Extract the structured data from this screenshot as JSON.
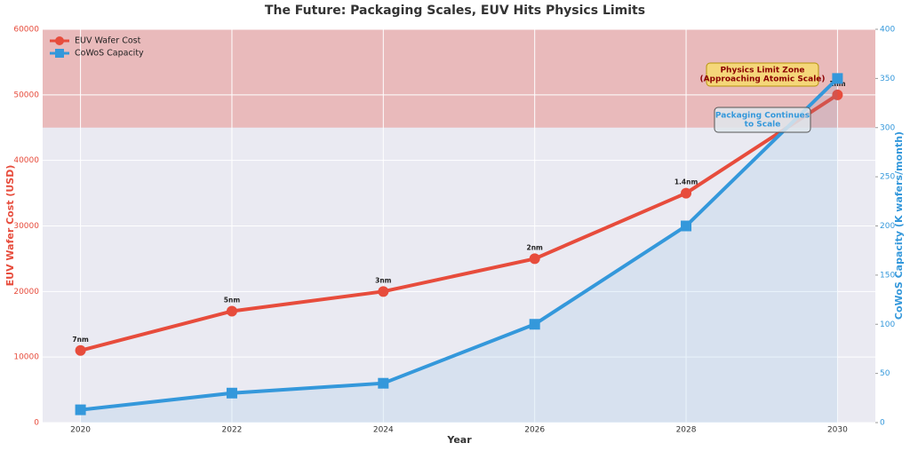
{
  "chart_data": {
    "type": "line",
    "title": "The Future: Packaging Scales, EUV Hits Physics Limits",
    "x_label": "Year",
    "y_label": "EUV Wafer Cost (USD)",
    "y2_label": "CoWoS Capacity (K wafers/month)",
    "x": [
      2020,
      2022,
      2024,
      2026,
      2028,
      2030
    ],
    "xlim": [
      2019.5,
      2030.5
    ],
    "xticks": [
      2020,
      2022,
      2024,
      2026,
      2028,
      2030
    ],
    "ylim": [
      0,
      60000
    ],
    "yticks": [
      0,
      10000,
      20000,
      30000,
      40000,
      50000,
      60000
    ],
    "y2lim": [
      0,
      400
    ],
    "y2ticks": [
      0,
      50,
      100,
      150,
      200,
      250,
      300,
      350,
      400
    ],
    "grid": true,
    "legend": "upper left",
    "zone": {
      "from": 45000,
      "to": 60000,
      "color": "#e74c3c"
    },
    "series": [
      {
        "name": "EUV Wafer Cost",
        "color": "#e74c3c",
        "marker": "circle",
        "values": [
          11000,
          17000,
          20000,
          25000,
          35000,
          50000
        ],
        "point_labels": [
          "7nm",
          "5nm",
          "3nm",
          "2nm",
          "1.4nm",
          "1nm"
        ]
      },
      {
        "name": "CoWoS Capacity",
        "color": "#3498db",
        "marker": "square",
        "axis": "y2",
        "fill": true,
        "values": [
          13,
          30,
          40,
          100,
          200,
          350
        ]
      }
    ],
    "annotations": [
      {
        "lines": [
          "Physics Limit Zone",
          "(Approaching Atomic Scale)"
        ]
      },
      {
        "lines": [
          "Packaging Continues",
          "to Scale"
        ]
      }
    ]
  }
}
